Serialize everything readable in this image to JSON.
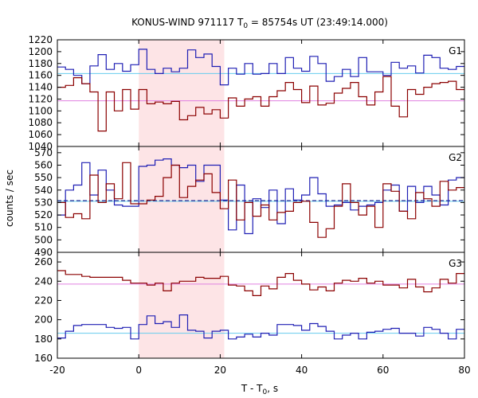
{
  "chart_data": {
    "type": "line",
    "title": "KONUS-WIND 971117 T",
    "title_sub": "0",
    "title_rest": " = 85754s UT (23:49:14.000)",
    "xlabel": "T - T",
    "xlabel_sub": "0",
    "xlabel_rest": ", s",
    "ylabel": "counts / sec",
    "xlim": [
      -20,
      80
    ],
    "xticks": [
      "-20",
      "0",
      "20",
      "40",
      "60",
      "80"
    ],
    "highlight_interval": [
      0,
      21
    ],
    "colors": {
      "blue": "#1f1fb4",
      "red": "#8b0000",
      "cyan_bg": "#66ccee",
      "pink_bg": "#e080e0",
      "shade": "#fde4e6"
    },
    "panels": [
      {
        "label": "G1",
        "ylim": [
          1040,
          1220
        ],
        "yticks": [
          "1040",
          "1060",
          "1080",
          "1100",
          "1120",
          "1140",
          "1160",
          "1180",
          "1200",
          "1220"
        ],
        "series": [
          {
            "color": "blue",
            "edges": [
              -20,
              -18,
              -16,
              -14,
              -12,
              -10,
              -8,
              -6,
              -4,
              -2,
              0,
              2,
              4,
              6,
              8,
              10,
              12,
              14,
              16,
              18,
              20,
              22,
              24,
              26,
              28,
              30,
              32,
              34,
              36,
              38,
              40,
              42,
              44,
              46,
              48,
              50,
              52,
              54,
              56,
              58,
              60,
              62,
              64,
              66,
              68,
              70,
              72,
              74,
              76,
              78,
              80
            ],
            "values": [
              1174,
              1170,
              1160,
              1146,
              1176,
              1195,
              1170,
              1180,
              1167,
              1178,
              1204,
              1170,
              1163,
              1172,
              1166,
              1172,
              1203,
              1190,
              1196,
              1175,
              1144,
              1172,
              1162,
              1180,
              1162,
              1163,
              1180,
              1163,
              1190,
              1172,
              1167,
              1192,
              1180,
              1150,
              1158,
              1170,
              1158,
              1190,
              1166,
              1166,
              1160,
              1182,
              1172,
              1176,
              1164,
              1194,
              1190,
              1172,
              1170,
              1175
            ]
          },
          {
            "color": "red",
            "edges": [
              -20,
              -18,
              -16,
              -14,
              -12,
              -10,
              -8,
              -6,
              -4,
              -2,
              0,
              2,
              4,
              6,
              8,
              10,
              12,
              14,
              16,
              18,
              20,
              22,
              24,
              26,
              28,
              30,
              32,
              34,
              36,
              38,
              40,
              42,
              44,
              46,
              48,
              50,
              52,
              54,
              56,
              58,
              60,
              62,
              64,
              66,
              68,
              70,
              72,
              74,
              76,
              78,
              80
            ],
            "values": [
              1140,
              1143,
              1156,
              1146,
              1132,
              1066,
              1132,
              1100,
              1136,
              1103,
              1136,
              1112,
              1115,
              1112,
              1116,
              1085,
              1092,
              1106,
              1095,
              1102,
              1088,
              1122,
              1108,
              1120,
              1124,
              1108,
              1124,
              1134,
              1148,
              1136,
              1114,
              1142,
              1110,
              1113,
              1130,
              1138,
              1148,
              1124,
              1110,
              1132,
              1158,
              1108,
              1090,
              1136,
              1128,
              1140,
              1146,
              1148,
              1150,
              1136
            ]
          },
          {
            "color": "cyan_bg",
            "level": 1163
          },
          {
            "color": "pink_bg",
            "level": 1117
          }
        ]
      },
      {
        "label": "G2",
        "ylim": [
          490,
          575
        ],
        "yticks": [
          "490",
          "500",
          "510",
          "520",
          "530",
          "540",
          "550",
          "560",
          "570"
        ],
        "series": [
          {
            "color": "blue",
            "edges": [
              -20,
              -18,
              -16,
              -14,
              -12,
              -10,
              -8,
              -6,
              -4,
              -2,
              0,
              2,
              4,
              6,
              8,
              10,
              12,
              14,
              16,
              18,
              20,
              22,
              24,
              26,
              28,
              30,
              32,
              34,
              36,
              38,
              40,
              42,
              44,
              46,
              48,
              50,
              52,
              54,
              56,
              58,
              60,
              62,
              64,
              66,
              68,
              70,
              72,
              74,
              76,
              78,
              80
            ],
            "values": [
              520,
              540,
              544,
              562,
              536,
              556,
              540,
              528,
              527,
              527,
              559,
              560,
              564,
              565,
              560,
              558,
              560,
              547,
              560,
              560,
              532,
              508,
              544,
              505,
              533,
              526,
              540,
              513,
              541,
              532,
              536,
              550,
              537,
              527,
              528,
              530,
              524,
              527,
              528,
              530,
              540,
              544,
              523,
              543,
              530,
              543,
              536,
              528,
              548,
              550
            ]
          },
          {
            "color": "red",
            "edges": [
              -20,
              -18,
              -16,
              -14,
              -12,
              -10,
              -8,
              -6,
              -4,
              -2,
              0,
              2,
              4,
              6,
              8,
              10,
              12,
              14,
              16,
              18,
              20,
              22,
              24,
              26,
              28,
              30,
              32,
              34,
              36,
              38,
              40,
              42,
              44,
              46,
              48,
              50,
              52,
              54,
              56,
              58,
              60,
              62,
              64,
              66,
              68,
              70,
              72,
              74,
              76,
              78,
              80
            ],
            "values": [
              530,
              518,
              521,
              517,
              552,
              530,
              545,
              533,
              562,
              529,
              529,
              532,
              535,
              550,
              560,
              534,
              543,
              548,
              553,
              538,
              525,
              548,
              516,
              530,
              519,
              528,
              516,
              522,
              523,
              530,
              531,
              514,
              502,
              509,
              527,
              545,
              530,
              520,
              527,
              510,
              545,
              539,
              523,
              517,
              538,
              533,
              527,
              547,
              540,
              542
            ]
          },
          {
            "color": "cyan_bg",
            "level": 531
          },
          {
            "color": "navy_dash",
            "level": 531.5
          }
        ]
      },
      {
        "label": "G3",
        "ylim": [
          160,
          270
        ],
        "yticks": [
          "160",
          "180",
          "200",
          "220",
          "240",
          "260"
        ],
        "series": [
          {
            "color": "red",
            "edges": [
              -20,
              -18,
              -16,
              -14,
              -12,
              -10,
              -8,
              -6,
              -4,
              -2,
              0,
              2,
              4,
              6,
              8,
              10,
              12,
              14,
              16,
              18,
              20,
              22,
              24,
              26,
              28,
              30,
              32,
              34,
              36,
              38,
              40,
              42,
              44,
              46,
              48,
              50,
              52,
              54,
              56,
              58,
              60,
              62,
              64,
              66,
              68,
              70,
              72,
              74,
              76,
              78,
              80
            ],
            "values": [
              251,
              247,
              247,
              245,
              244,
              244,
              244,
              244,
              241,
              238,
              238,
              236,
              238,
              230,
              238,
              240,
              240,
              244,
              243,
              243,
              245,
              236,
              235,
              230,
              225,
              235,
              232,
              244,
              248,
              241,
              237,
              231,
              234,
              230,
              238,
              241,
              240,
              243,
              238,
              240,
              236,
              236,
              233,
              242,
              234,
              229,
              233,
              242,
              238,
              248
            ]
          },
          {
            "color": "blue",
            "edges": [
              -20,
              -18,
              -16,
              -14,
              -12,
              -10,
              -8,
              -6,
              -4,
              -2,
              0,
              2,
              4,
              6,
              8,
              10,
              12,
              14,
              16,
              18,
              20,
              22,
              24,
              26,
              28,
              30,
              32,
              34,
              36,
              38,
              40,
              42,
              44,
              46,
              48,
              50,
              52,
              54,
              56,
              58,
              60,
              62,
              64,
              66,
              68,
              70,
              72,
              74,
              76,
              78,
              80
            ],
            "values": [
              181,
              188,
              194,
              195,
              195,
              195,
              192,
              191,
              192,
              180,
              195,
              204,
              196,
              198,
              192,
              205,
              189,
              188,
              181,
              188,
              189,
              180,
              182,
              185,
              182,
              186,
              184,
              195,
              195,
              194,
              189,
              196,
              193,
              188,
              180,
              184,
              186,
              180,
              187,
              188,
              190,
              191,
              186,
              186,
              183,
              192,
              190,
              186,
              180,
              190
            ]
          },
          {
            "color": "pink_bg",
            "level": 237
          },
          {
            "color": "cyan_bg",
            "level": 186
          }
        ]
      }
    ]
  }
}
